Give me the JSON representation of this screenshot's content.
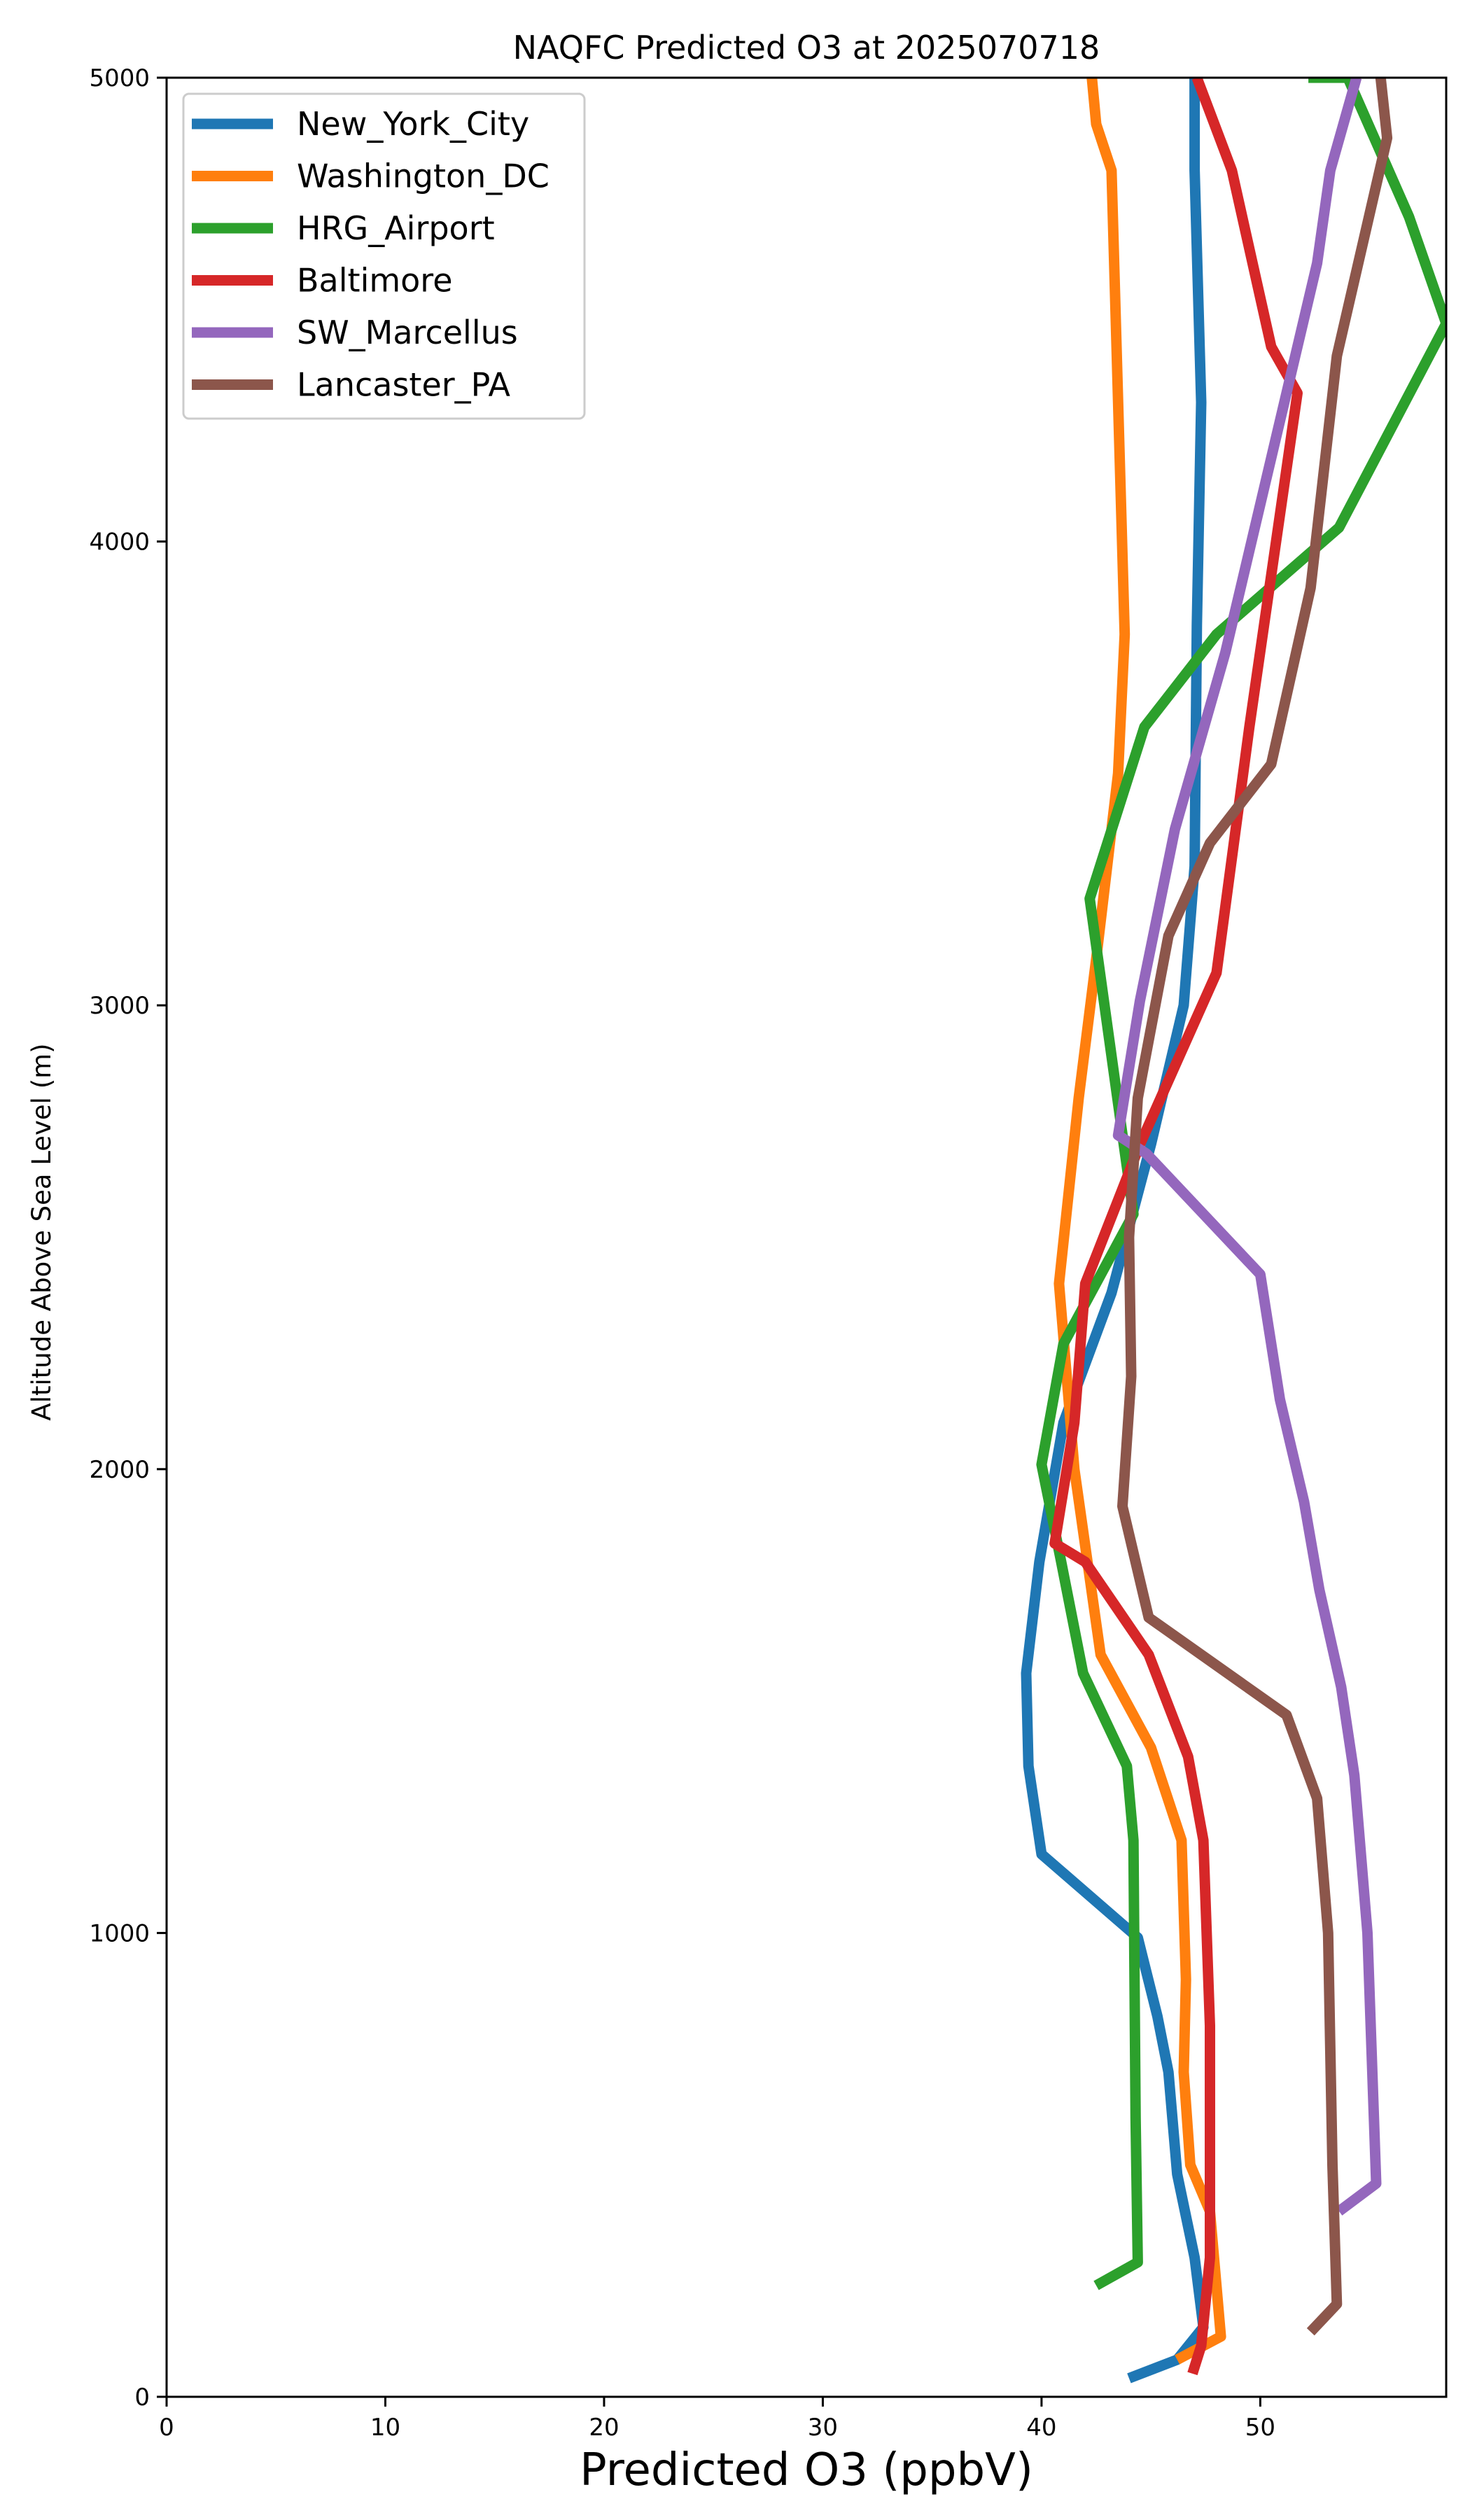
{
  "chart_data": {
    "type": "line",
    "title": "NAQFC Predicted O3 at 2025070718",
    "xlabel": "Predicted O3 (ppbV)",
    "ylabel": "Altitude Above Sea Level (m)",
    "xlim": [
      0,
      58.5
    ],
    "ylim": [
      0,
      5000
    ],
    "xticks": [
      0,
      10,
      20,
      30,
      40,
      50
    ],
    "yticks": [
      0,
      1000,
      2000,
      3000,
      4000,
      5000
    ],
    "legend_position": "upper-left",
    "series": [
      {
        "name": "New_York_City",
        "color": "#1f77b4",
        "x": [
          44.0,
          46.2,
          47.4,
          47.0,
          46.2,
          45.8,
          45.3,
          44.4,
          40.0,
          39.4,
          39.3,
          39.9,
          41.0,
          43.2,
          45.0,
          46.5,
          47.0,
          47.1,
          47.3,
          47.0,
          47.0
        ],
        "y": [
          40,
          80,
          150,
          300,
          480,
          700,
          820,
          990,
          1170,
          1360,
          1560,
          1800,
          2100,
          2380,
          2700,
          3000,
          3300,
          3820,
          4300,
          4800,
          5000
        ]
      },
      {
        "name": "Washington_DC",
        "color": "#ff7f0e",
        "x": [
          46.2,
          48.2,
          47.7,
          46.8,
          46.5,
          46.6,
          46.4,
          45.0,
          42.7,
          41.5,
          40.8,
          41.7,
          42.5,
          43.5,
          43.8,
          43.5,
          43.2,
          42.5,
          42.3
        ],
        "y": [
          80,
          130,
          400,
          500,
          700,
          900,
          1200,
          1400,
          1600,
          2000,
          2400,
          2800,
          3100,
          3500,
          3800,
          4300,
          4800,
          4900,
          5000
        ]
      },
      {
        "name": "HRG_Airport",
        "color": "#2ca02c",
        "x": [
          42.5,
          44.4,
          44.3,
          44.2,
          43.9,
          41.9,
          40.9,
          40.0,
          41.0,
          44.2,
          42.2,
          44.7,
          48.0,
          53.6,
          58.5,
          56.8,
          54.0,
          52.2
        ],
        "y": [
          240,
          290,
          600,
          1200,
          1360,
          1560,
          1800,
          2010,
          2270,
          2550,
          3230,
          3600,
          3800,
          4030,
          4470,
          4700,
          5000,
          5000
        ]
      },
      {
        "name": "Baltimore",
        "color": "#d62728",
        "x": [
          46.9,
          47.3,
          47.7,
          47.7,
          47.4,
          46.7,
          44.9,
          42.0,
          40.6,
          41.5,
          42.0,
          44.5,
          48.0,
          49.5,
          51.7,
          50.5,
          48.7,
          47.1
        ],
        "y": [
          50,
          110,
          300,
          800,
          1200,
          1380,
          1600,
          1800,
          1840,
          2100,
          2400,
          2700,
          3070,
          3600,
          4320,
          4420,
          4800,
          5000
        ]
      },
      {
        "name": "SW_Marcellus",
        "color": "#9467bd",
        "x": [
          53.6,
          55.3,
          54.9,
          54.3,
          53.7,
          52.7,
          52.0,
          50.9,
          50.0,
          44.8,
          43.5,
          44.5,
          46.1,
          48.4,
          52.6,
          53.2,
          54.4
        ],
        "y": [
          400,
          460,
          1000,
          1340,
          1530,
          1740,
          1930,
          2150,
          2420,
          2680,
          2720,
          3010,
          3380,
          3760,
          4600,
          4800,
          5000
        ]
      },
      {
        "name": "Lancaster_PA",
        "color": "#8c564b",
        "x": [
          52.3,
          53.5,
          53.3,
          53.1,
          52.6,
          51.2,
          44.9,
          43.7,
          44.1,
          44.0,
          44.4,
          45.8,
          47.7,
          50.5,
          52.3,
          53.5,
          55.8,
          55.5
        ],
        "y": [
          140,
          200,
          500,
          1000,
          1290,
          1470,
          1680,
          1920,
          2200,
          2500,
          2800,
          3150,
          3350,
          3520,
          3900,
          4400,
          4870,
          5000
        ]
      }
    ]
  }
}
